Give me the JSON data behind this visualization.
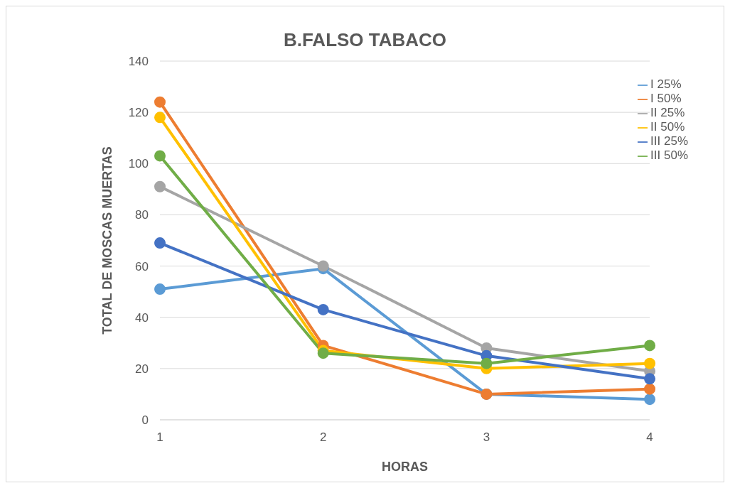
{
  "chart_data": {
    "type": "line",
    "title": "B.FALSO TABACO",
    "xlabel": "HORAS",
    "ylabel": "TOTAL DE MOSCAS MUERTAS",
    "categories": [
      "1",
      "2",
      "3",
      "4"
    ],
    "series": [
      {
        "name": "I 25%",
        "color": "#5b9bd5",
        "values": [
          51,
          59,
          10,
          8
        ]
      },
      {
        "name": "I 50%",
        "color": "#ed7d31",
        "values": [
          124,
          29,
          10,
          12
        ]
      },
      {
        "name": "II 25%",
        "color": "#a5a5a5",
        "values": [
          91,
          60,
          28,
          19
        ]
      },
      {
        "name": "II 50%",
        "color": "#ffc000",
        "values": [
          118,
          27,
          20,
          22
        ]
      },
      {
        "name": "III 25%",
        "color": "#4472c4",
        "values": [
          69,
          43,
          25,
          16
        ]
      },
      {
        "name": "III 50%",
        "color": "#70ad47",
        "values": [
          103,
          26,
          22,
          29
        ]
      }
    ],
    "ylim": [
      0,
      140
    ],
    "yticks": [
      0,
      20,
      40,
      60,
      80,
      100,
      120,
      140
    ],
    "grid": "y",
    "legend": "top right",
    "marker": "circle",
    "line_style": "solid"
  }
}
